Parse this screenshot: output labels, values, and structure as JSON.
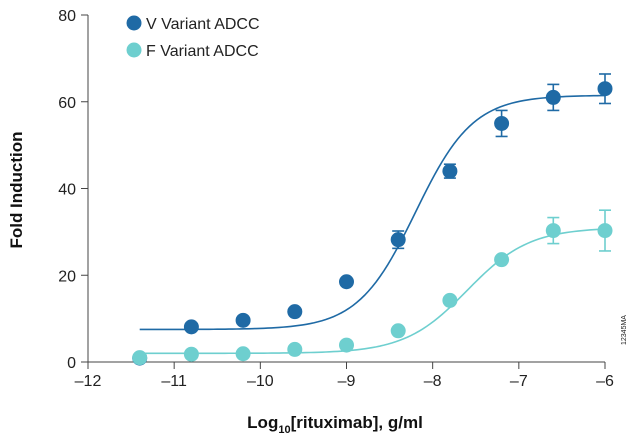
{
  "chart_data": {
    "type": "scatter",
    "xlabel_main": "Log",
    "xlabel_sub": "10",
    "xlabel_rest": "[rituximab], g/ml",
    "ylabel": "Fold Induction",
    "xlim": [
      -12,
      -6
    ],
    "ylim": [
      0,
      80
    ],
    "x_ticks": [
      -12,
      -11,
      -10,
      -9,
      -8,
      -7,
      -6
    ],
    "x_tick_labels": [
      "–12",
      "–11",
      "–10",
      "–9",
      "–8",
      "–7",
      "–6"
    ],
    "y_ticks": [
      0,
      20,
      40,
      60,
      80
    ],
    "y_tick_labels": [
      "0",
      "20",
      "40",
      "60",
      "80"
    ],
    "grid": false,
    "legend_position": "top-left",
    "watermark_text": "12345MA",
    "series": [
      {
        "name": "V Variant ADCC",
        "color": "#1f6aa5",
        "points": [
          {
            "x": -11.4,
            "y": 0.9,
            "err": 0
          },
          {
            "x": -10.8,
            "y": 8.1,
            "err": 0
          },
          {
            "x": -10.2,
            "y": 9.6,
            "err": 0
          },
          {
            "x": -9.6,
            "y": 11.6,
            "err": 0
          },
          {
            "x": -9.0,
            "y": 18.5,
            "err": 0
          },
          {
            "x": -8.4,
            "y": 28.2,
            "err": 2.0
          },
          {
            "x": -7.8,
            "y": 44.0,
            "err": 1.6
          },
          {
            "x": -7.2,
            "y": 55.0,
            "err": 3.0
          },
          {
            "x": -6.6,
            "y": 61.0,
            "err": 3.0
          },
          {
            "x": -6.0,
            "y": 63.0,
            "err": 3.4
          }
        ],
        "fit": {
          "bottom": 7.5,
          "top": 61.5,
          "log_ec50": -8.2,
          "hill": 1.3
        }
      },
      {
        "name": "F Variant ADCC",
        "color": "#6ecfcf",
        "points": [
          {
            "x": -11.4,
            "y": 1.0,
            "err": 0
          },
          {
            "x": -10.8,
            "y": 1.8,
            "err": 0
          },
          {
            "x": -10.2,
            "y": 1.9,
            "err": 0
          },
          {
            "x": -9.6,
            "y": 2.9,
            "err": 0
          },
          {
            "x": -9.0,
            "y": 3.9,
            "err": 0
          },
          {
            "x": -8.4,
            "y": 7.2,
            "err": 0
          },
          {
            "x": -7.8,
            "y": 14.2,
            "err": 0
          },
          {
            "x": -7.2,
            "y": 23.6,
            "err": 0
          },
          {
            "x": -6.6,
            "y": 30.3,
            "err": 3.0
          },
          {
            "x": -6.0,
            "y": 30.3,
            "err": 4.7
          }
        ],
        "fit": {
          "bottom": 2.0,
          "top": 31.0,
          "log_ec50": -7.6,
          "hill": 1.2
        }
      }
    ]
  }
}
